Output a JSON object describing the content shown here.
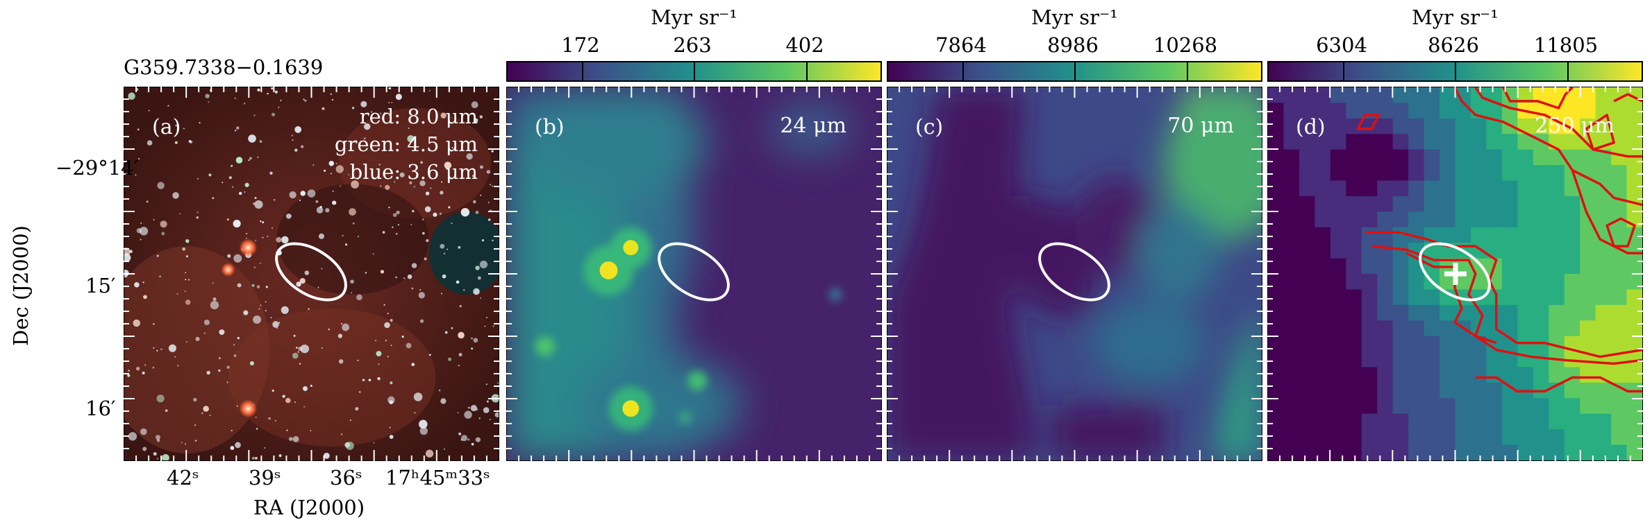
{
  "source_title": "G359.7338−0.1639",
  "panels": [
    {
      "label": "(a)",
      "bands": [
        "red: 8.0 μm",
        "green: 4.5 μm",
        "blue: 3.6 μm"
      ]
    },
    {
      "label": "(b)",
      "band": "24 μm"
    },
    {
      "label": "(c)",
      "band": "70 μm"
    },
    {
      "label": "(d)",
      "band": "250 μm"
    }
  ],
  "colorbars": [
    {
      "unit": "Myr sr⁻¹",
      "ticks": [
        "172",
        "263",
        "402"
      ]
    },
    {
      "unit": "Myr sr⁻¹",
      "ticks": [
        "7864",
        "8986",
        "10268"
      ]
    },
    {
      "unit": "Myr sr⁻¹",
      "ticks": [
        "6304",
        "8626",
        "11805"
      ]
    }
  ],
  "axes": {
    "ylabel": "Dec (J2000)",
    "xlabel": "RA (J2000)",
    "yticks": [
      "−29°14′",
      "15′",
      "16′"
    ],
    "xticks": [
      "42ˢ",
      "39ˢ",
      "36ˢ",
      "17ʰ45ᵐ33ˢ"
    ]
  },
  "colors": {
    "viridis_dark": "#440154",
    "viridis_mid": "#21918c",
    "viridis_bright": "#fde725",
    "contour": "#e01010",
    "ellipse": "#ffffff"
  }
}
